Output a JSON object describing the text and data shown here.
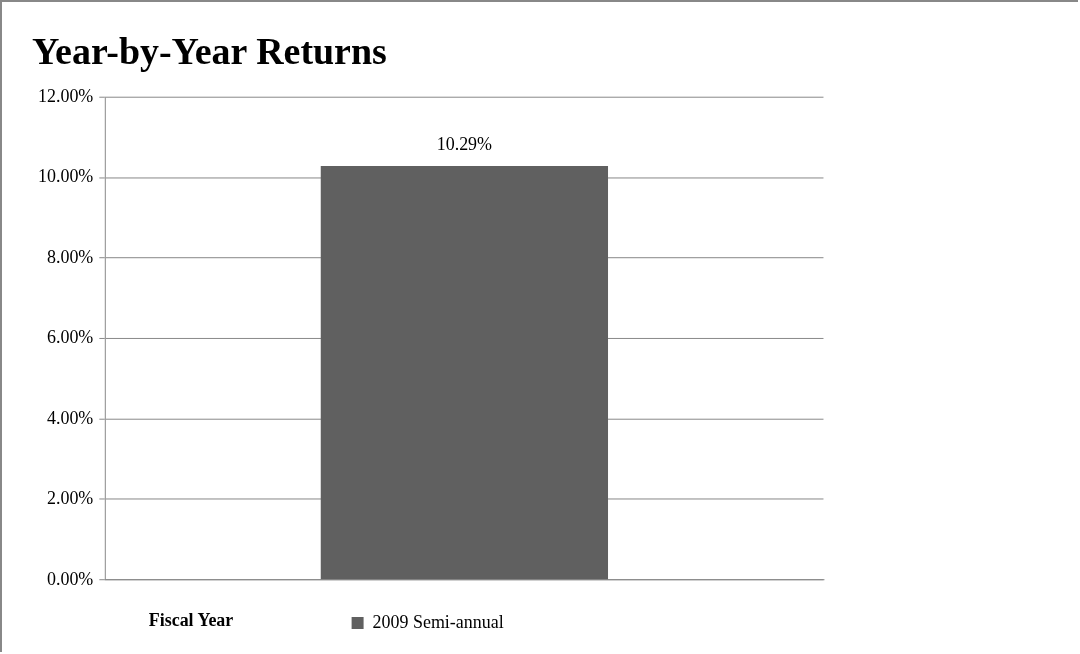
{
  "chart_data": {
    "type": "bar",
    "title": "Year-by-Year Returns",
    "xlabel": "Fiscal Year",
    "categories": [
      null
    ],
    "series": [
      {
        "name": "2009 Semi-annual",
        "color": "#606060",
        "values": [
          10.29
        ],
        "value_labels": [
          "10.29%"
        ]
      }
    ],
    "ylim": [
      0,
      12
    ],
    "yticks": [
      {
        "value": 0,
        "label": "0.00%"
      },
      {
        "value": 2,
        "label": "2.00%"
      },
      {
        "value": 4,
        "label": "4.00%"
      },
      {
        "value": 6,
        "label": "6.00%"
      },
      {
        "value": 8,
        "label": "8.00%"
      },
      {
        "value": 10,
        "label": "10.00%"
      },
      {
        "value": 12,
        "label": "12.00%"
      }
    ],
    "grid": "y",
    "legend": "bottom"
  }
}
